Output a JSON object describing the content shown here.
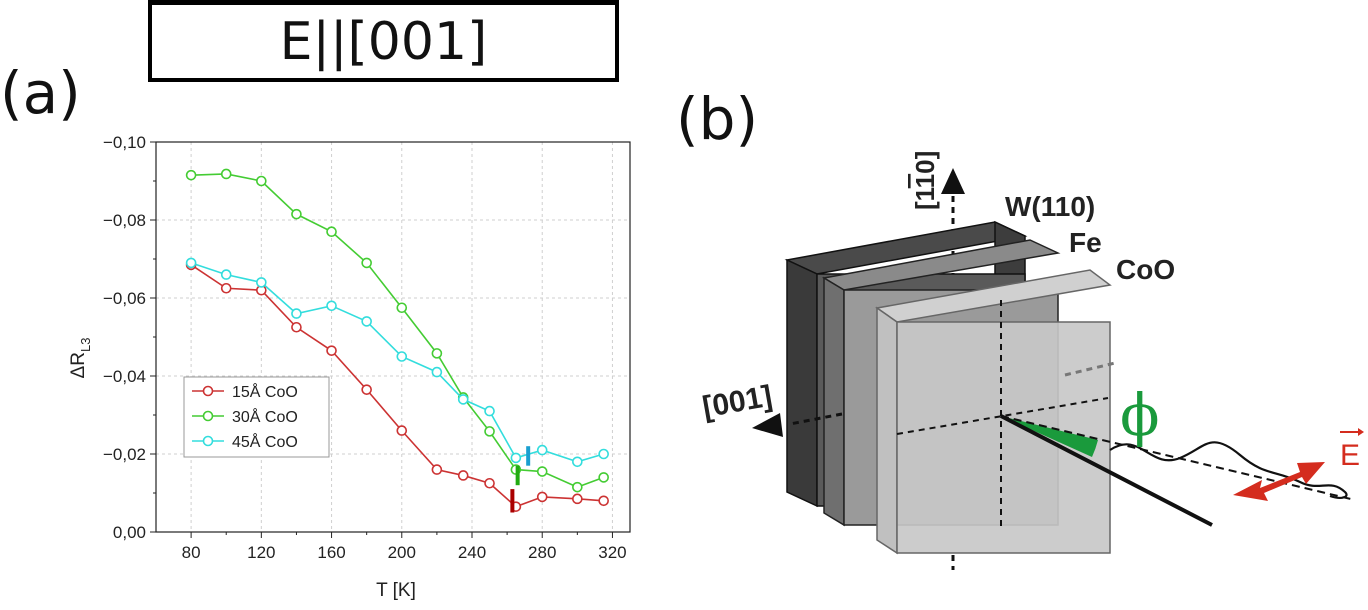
{
  "header": {
    "title": "E||[001]"
  },
  "panel_a": {
    "label": "(a)"
  },
  "panel_b": {
    "label": "(b)"
  },
  "chart_data": {
    "type": "line",
    "title": "",
    "xlabel": "T [K]",
    "ylabel_main": "ΔR",
    "ylabel_sub": "L3",
    "xlim": [
      60,
      330
    ],
    "ylim": [
      0,
      -0.1
    ],
    "y_inverted": true,
    "grid": true,
    "legend_position": "lower-left",
    "x_ticks": [
      80,
      120,
      160,
      200,
      240,
      280,
      320
    ],
    "x_tick_labels": [
      "80",
      "120",
      "160",
      "200",
      "240",
      "280",
      "320"
    ],
    "y_ticks": [
      0,
      -0.02,
      -0.04,
      -0.06,
      -0.08,
      -0.1
    ],
    "y_tick_labels": [
      "0,00",
      "−0,02",
      "−0,04",
      "−0,06",
      "−0,08",
      "−0,10"
    ],
    "series": [
      {
        "name": "15Å CoO",
        "color": "#cc3333",
        "x": [
          80,
          100,
          120,
          140,
          160,
          180,
          200,
          220,
          235,
          250,
          265,
          280,
          300,
          315
        ],
        "y": [
          -0.0685,
          -0.0625,
          -0.062,
          -0.0525,
          -0.0465,
          -0.0365,
          -0.026,
          -0.016,
          -0.0145,
          -0.0125,
          -0.0065,
          -0.009,
          -0.0085,
          -0.008
        ]
      },
      {
        "name": "30Å CoO",
        "color": "#44cc33",
        "x": [
          80,
          100,
          120,
          140,
          160,
          180,
          200,
          220,
          235,
          250,
          265,
          280,
          300,
          315
        ],
        "y": [
          -0.0915,
          -0.0918,
          -0.09,
          -0.0815,
          -0.077,
          -0.069,
          -0.0575,
          -0.0458,
          -0.0345,
          -0.0258,
          -0.016,
          -0.0155,
          -0.0115,
          -0.014
        ]
      },
      {
        "name": "45Å CoO",
        "color": "#33dddd",
        "x": [
          80,
          100,
          120,
          140,
          160,
          180,
          200,
          220,
          235,
          250,
          265,
          280,
          300,
          315
        ],
        "y": [
          -0.069,
          -0.066,
          -0.064,
          -0.056,
          -0.058,
          -0.054,
          -0.045,
          -0.041,
          -0.034,
          -0.031,
          -0.019,
          -0.021,
          -0.018,
          -0.02
        ]
      }
    ],
    "markers": [
      {
        "series": "15Å CoO",
        "x": 263,
        "y_from": -0.005,
        "y_to": -0.011,
        "color": "#aa0000"
      },
      {
        "series": "30Å CoO",
        "x": 266,
        "y_from": -0.012,
        "y_to": -0.017,
        "color": "#22aa11"
      },
      {
        "series": "45Å CoO",
        "x": 272,
        "y_from": -0.017,
        "y_to": -0.022,
        "color": "#1a9fd0"
      }
    ]
  },
  "diagram": {
    "axis_top_label": "[1",
    "axis_top_label_bar": "1",
    "axis_top_label_end": "0]",
    "axis_left_label": "[001]",
    "layer_labels": [
      "W(110)",
      "Fe",
      "CoO"
    ],
    "angle_symbol": "ϕ",
    "field_symbol": "E",
    "angle_color": "#1a9a3c",
    "field_color": "#d42c1e"
  }
}
